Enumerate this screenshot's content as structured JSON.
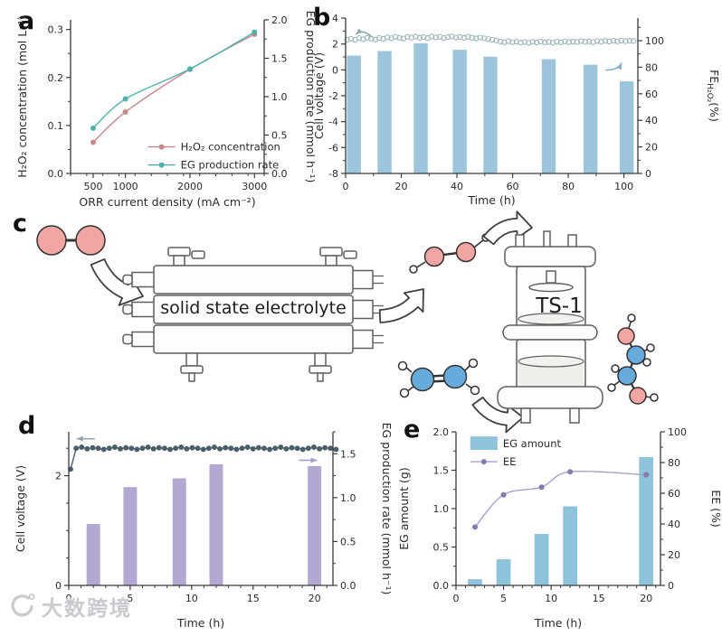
{
  "panel_labels": {
    "a": "a",
    "b": "b",
    "c": "c",
    "d": "d",
    "e": "e"
  },
  "watermark": {
    "text": "大数跨境"
  },
  "diagram": {
    "electrolyzer_label": "solid state electrolyte",
    "reactor_label": "TS-1",
    "molecule_names": [
      "oxygen",
      "hydrogen peroxide",
      "ethylene",
      "ethylene glycol"
    ],
    "colors": {
      "oxygen": "#f2a6a4",
      "carbon": "#66abdb",
      "hydrogen": "#ffffff",
      "outline": "#333333",
      "sketch": "#5f5f5f",
      "sketch_fill": "#fdfdfb"
    }
  },
  "chart_data": [
    {
      "id": "a",
      "type": "line",
      "xlabel": "ORR current density (mA cm⁻²)",
      "xlim": [
        150,
        3150
      ],
      "x_ticks": [
        500,
        1000,
        2000,
        3000
      ],
      "x_tick_labels": [
        "500",
        "1000",
        "2000",
        "3000"
      ],
      "x_minor_step": 250,
      "left": {
        "label": "H₂O₂ concentration (mol L⁻¹)",
        "lim": [
          0,
          0.32
        ],
        "ticks": [
          0,
          0.1,
          0.2,
          0.3
        ],
        "tick_labels": [
          "0.0",
          "0.1",
          "0.2",
          "0.3"
        ],
        "minor_step": 0.05
      },
      "right": {
        "label": "EG production rate (mmol h⁻¹)",
        "lim": [
          0,
          2
        ],
        "ticks": [
          0,
          0.5,
          1,
          1.5,
          2
        ],
        "tick_labels": [
          "0.0",
          "0.5",
          "1.0",
          "1.5",
          "2.0"
        ],
        "minor_step": 0.25
      },
      "lines": [
        {
          "name": "H₂O₂ concentration",
          "axis": "left",
          "color": "#c4888d",
          "dot_color": "#c4888d",
          "smooth": true,
          "x": [
            500,
            1000,
            2000,
            3000
          ],
          "y": [
            0.065,
            0.128,
            0.217,
            0.29
          ]
        },
        {
          "name": "EG production rate",
          "axis": "right",
          "color": "#4fb0ab",
          "dot_color": "#4fb0ab",
          "smooth": true,
          "x": [
            500,
            1000,
            2000,
            3000
          ],
          "y": [
            0.59,
            0.97,
            1.36,
            1.84
          ]
        }
      ],
      "legend": {
        "fx": 0.4,
        "fy": 0.78,
        "items": [
          {
            "swatch": "line",
            "color": "#c4888d",
            "dot": "#c4888d",
            "label": "H₂O₂ concentration"
          },
          {
            "swatch": "line",
            "color": "#4fb0ab",
            "dot": "#4fb0ab",
            "label": "EG production rate"
          }
        ]
      }
    },
    {
      "id": "b",
      "type": "bar-scatter",
      "xlabel": "Time (h)",
      "xlim": [
        0,
        105
      ],
      "x_ticks": [
        0,
        20,
        40,
        60,
        80,
        100
      ],
      "x_tick_labels": [
        "0",
        "20",
        "40",
        "60",
        "80",
        "100"
      ],
      "x_minor_step": 10,
      "left": {
        "label": "Cell voltage (V)",
        "lim": [
          -8,
          4
        ],
        "ticks": [
          4,
          2,
          0,
          -2,
          -4,
          -6,
          -8
        ],
        "tick_labels": [
          "4",
          "2",
          "0",
          "-2",
          "-4",
          "-6",
          "-8"
        ],
        "minor_step": 1
      },
      "right": {
        "label": "FE H₂O₂ (%)",
        "label_parts": [
          {
            "t": "FE"
          },
          {
            "t": "H₂O₂",
            "sub": true
          },
          {
            "t": "(%)"
          }
        ],
        "lim": [
          0,
          117
        ],
        "ticks": [
          0,
          20,
          40,
          60,
          80,
          100
        ],
        "tick_labels": [
          "0",
          "20",
          "40",
          "60",
          "80",
          "100"
        ],
        "minor_step": 10
      },
      "bars": {
        "axis": "left",
        "base": -8,
        "color": "#9cc4da",
        "width": 5,
        "x": [
          3,
          14,
          27,
          41,
          52,
          73,
          88,
          101
        ],
        "y": [
          1.1,
          1.45,
          2.05,
          1.55,
          1.02,
          0.82,
          0.4,
          -0.88
        ]
      },
      "scatter": {
        "axis": "right",
        "style": "open",
        "color": "#9bb2bb",
        "r": 2.6,
        "x": [
          0.5,
          1.95,
          3.4,
          4.85,
          6.3,
          7.75,
          9.2,
          10.65,
          12.1,
          13.55,
          15,
          16.45,
          17.9,
          19.35,
          20.8,
          22.25,
          23.7,
          25.15,
          26.6,
          28.05,
          29.5,
          30.95,
          32.4,
          33.85,
          35.3,
          36.75,
          38.2,
          39.65,
          41.1,
          42.55,
          44,
          45.45,
          46.9,
          48.35,
          49.8,
          51.25,
          52.7,
          54.15,
          55.6,
          57.05,
          58.5,
          59.95,
          61.4,
          62.85,
          64.3,
          65.75,
          67.2,
          68.65,
          70.1,
          71.55,
          73,
          74.45,
          75.9,
          77.35,
          78.8,
          80.25,
          81.7,
          83.15,
          84.6,
          86.05,
          87.5,
          88.95,
          90.4,
          91.85,
          93.3,
          94.75,
          96.2,
          97.65,
          99.1,
          100.55,
          102,
          103.45
        ],
        "y": [
          100.8,
          101.4,
          100.6,
          101.9,
          101.1,
          102.2,
          101.5,
          100.9,
          102.0,
          101.3,
          102.5,
          101.8,
          102.9,
          102.1,
          101.6,
          102.8,
          102.3,
          103.0,
          102.2,
          102.7,
          101.9,
          103.1,
          102.4,
          102.9,
          102.0,
          102.6,
          103.2,
          102.3,
          102.8,
          102.1,
          102.9,
          102.2,
          101.7,
          102.4,
          101.8,
          101.2,
          100.7,
          100.2,
          99.4,
          98.8,
          99.6,
          98.9,
          99.2,
          98.5,
          99.0,
          98.4,
          99.1,
          98.6,
          99.3,
          98.7,
          99.0,
          98.5,
          99.2,
          98.8,
          99.5,
          98.9,
          99.3,
          99.0,
          99.6,
          99.1,
          99.4,
          98.9,
          99.7,
          99.2,
          99.8,
          99.3,
          99.9,
          99.5,
          100.1,
          99.6,
          100.0,
          99.7
        ]
      },
      "annotations": [
        {
          "shape": "curved",
          "dir": "left",
          "fx": 0.035,
          "fy": 0.1,
          "color": "#8fa6ae"
        },
        {
          "shape": "curved",
          "dir": "right",
          "fx": 0.945,
          "fy": 0.3,
          "color": "#85aecb"
        }
      ]
    },
    {
      "id": "d",
      "type": "bar-scatter",
      "xlabel": "Time (h)",
      "xlim": [
        0,
        21.5
      ],
      "x_ticks": [
        0,
        5,
        10,
        15,
        20
      ],
      "x_tick_labels": [
        "0",
        "5",
        "10",
        "15",
        "20"
      ],
      "x_minor_step": 1,
      "left": {
        "label": "Cell voltage (V)",
        "lim": [
          0,
          2.8
        ],
        "ticks": [
          0,
          2
        ],
        "tick_labels": [
          "0",
          "2"
        ],
        "minor_step": 0.5
      },
      "right": {
        "label": "EG production rate (mmol h⁻¹)",
        "lim": [
          0,
          1.75
        ],
        "ticks": [
          0,
          0.5,
          1,
          1.5
        ],
        "tick_labels": [
          "0.0",
          "0.5",
          "1.0",
          "1.5"
        ],
        "minor_step": 0.25
      },
      "bars": {
        "axis": "right",
        "base": 0,
        "color": "#b3a8d2",
        "width": 1.1,
        "x": [
          2,
          5,
          9,
          12,
          20
        ],
        "y": [
          0.7,
          1.12,
          1.22,
          1.38,
          1.36
        ]
      },
      "scatter": {
        "axis": "left",
        "style": "filled-line",
        "color": "#4a5f6a",
        "r": 2.4,
        "x": [
          0.15,
          0.6,
          1.05,
          1.5,
          1.95,
          2.4,
          2.85,
          3.3,
          3.75,
          4.2,
          4.65,
          5.1,
          5.55,
          6.0,
          6.45,
          6.9,
          7.35,
          7.8,
          8.25,
          8.7,
          9.15,
          9.6,
          10.05,
          10.5,
          10.95,
          11.4,
          11.85,
          12.3,
          12.75,
          13.2,
          13.65,
          14.1,
          14.55,
          15.0,
          15.45,
          15.9,
          16.35,
          16.8,
          17.25,
          17.7,
          18.15,
          18.6,
          19.05,
          19.5,
          19.95,
          20.4,
          20.85,
          21.3,
          21.75
        ],
        "y": [
          2.12,
          2.5,
          2.52,
          2.49,
          2.51,
          2.5,
          2.48,
          2.5,
          2.52,
          2.49,
          2.51,
          2.5,
          2.48,
          2.5,
          2.52,
          2.49,
          2.51,
          2.5,
          2.48,
          2.5,
          2.52,
          2.49,
          2.51,
          2.5,
          2.48,
          2.5,
          2.52,
          2.49,
          2.51,
          2.5,
          2.48,
          2.5,
          2.52,
          2.49,
          2.51,
          2.5,
          2.48,
          2.5,
          2.52,
          2.49,
          2.51,
          2.5,
          2.48,
          2.5,
          2.52,
          2.49,
          2.51,
          2.5,
          2.48
        ]
      },
      "annotations": [
        {
          "shape": "straight",
          "dir": "left",
          "fx": 0.03,
          "fy": 0.045,
          "color": "#98a4ab"
        },
        {
          "shape": "straight",
          "dir": "right",
          "fx": 0.94,
          "fy": 0.185,
          "color": "#a79cc8"
        }
      ]
    },
    {
      "id": "e",
      "type": "bar-line",
      "xlabel": "Time (h)",
      "xlim": [
        0,
        21.5
      ],
      "x_ticks": [
        0,
        5,
        10,
        15,
        20
      ],
      "x_tick_labels": [
        "0",
        "5",
        "10",
        "15",
        "20"
      ],
      "x_minor_step": 1,
      "left": {
        "label": "EG amount (g)",
        "lim": [
          0,
          2
        ],
        "ticks": [
          0,
          0.5,
          1,
          1.5,
          2
        ],
        "tick_labels": [
          "0.0",
          "0.5",
          "1.0",
          "1.5",
          "2.0"
        ],
        "minor_step": 0.25
      },
      "right": {
        "label": "EE (%)",
        "lim": [
          0,
          100
        ],
        "ticks": [
          0,
          20,
          40,
          60,
          80,
          100
        ],
        "tick_labels": [
          "0",
          "20",
          "40",
          "60",
          "80",
          "100"
        ],
        "minor_step": 10
      },
      "bars": {
        "axis": "left",
        "base": 0,
        "color": "#8fc2db",
        "width": 1.5,
        "x": [
          2,
          5,
          9,
          12,
          20
        ],
        "y": [
          0.08,
          0.34,
          0.67,
          1.03,
          1.67
        ]
      },
      "lines": [
        {
          "name": "EE",
          "axis": "right",
          "color": "#a9a0c9",
          "dot_color": "#8379ab",
          "smooth": true,
          "x": [
            2,
            5,
            9,
            12,
            20
          ],
          "y": [
            38,
            59,
            64,
            74,
            72
          ]
        }
      ],
      "legend": {
        "fx": 0.07,
        "fy": 0.03,
        "items": [
          {
            "swatch": "bar",
            "color": "#8fc2db",
            "label": "EG amount"
          },
          {
            "swatch": "line",
            "color": "#a9a0c9",
            "dot": "#8379ab",
            "label": "EE"
          }
        ]
      }
    }
  ]
}
